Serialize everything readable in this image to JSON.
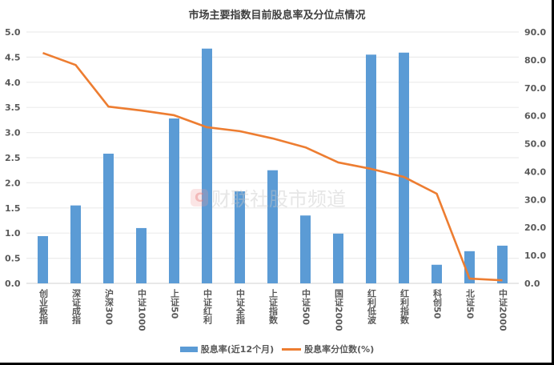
{
  "chart_data": {
    "type": "bar+line",
    "title": "市场主要指数目前股息率及分位点情况",
    "categories": [
      "创业板指",
      "深证成指",
      "沪深300",
      "中证1000",
      "上证50",
      "中证红利",
      "中证全指",
      "上证指数",
      "中证500",
      "国证2000",
      "红利低波",
      "红利指数",
      "科创50",
      "北证50",
      "中证2000"
    ],
    "series": [
      {
        "name": "股息率(近12个月)",
        "type": "bar",
        "axis": "left",
        "color": "#5b9bd5",
        "values": [
          0.94,
          1.55,
          2.58,
          1.1,
          3.28,
          4.67,
          1.83,
          2.25,
          1.35,
          0.99,
          4.55,
          4.59,
          0.37,
          0.64,
          0.75
        ]
      },
      {
        "name": "股息率分位数(%)",
        "type": "line",
        "axis": "right",
        "color": "#ed7d31",
        "values": [
          82.5,
          78.2,
          63.3,
          61.9,
          60.2,
          55.9,
          54.5,
          51.9,
          48.7,
          43.3,
          41.0,
          38.1,
          32.1,
          1.7,
          1.1
        ]
      }
    ],
    "left_axis": {
      "ylim": [
        0,
        5.0
      ],
      "ticks": [
        "0.0",
        "0.5",
        "1.0",
        "1.5",
        "2.0",
        "2.5",
        "3.0",
        "3.5",
        "4.0",
        "4.5",
        "5.0"
      ]
    },
    "right_axis": {
      "ylim": [
        0,
        90.0
      ],
      "ticks": [
        "0.0",
        "10.0",
        "20.0",
        "30.0",
        "40.0",
        "50.0",
        "60.0",
        "70.0",
        "80.0",
        "90.0"
      ]
    },
    "xlabel": "",
    "ylabel": "",
    "grid": true,
    "legend_position": "bottom"
  },
  "legend": {
    "bar_label": "股息率(近12个月)",
    "line_label": "股息率分位数(%)"
  },
  "watermark": {
    "logo": "C",
    "text": "财联社股市频道"
  }
}
